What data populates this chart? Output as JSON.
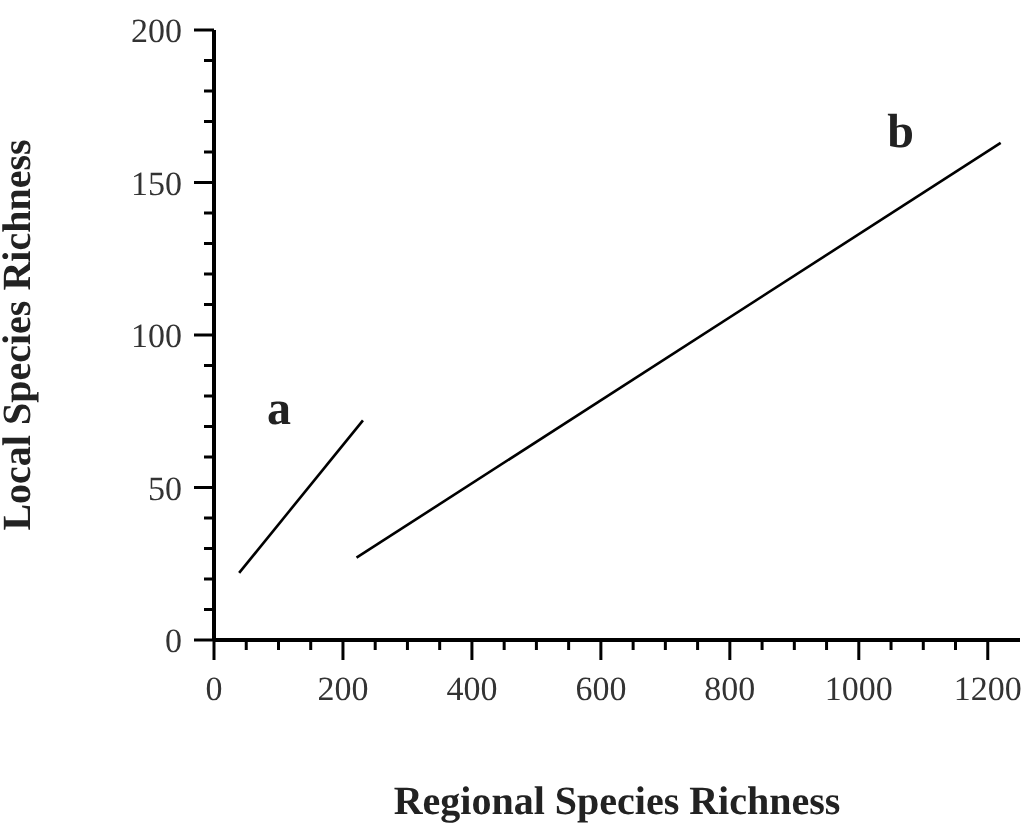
{
  "chart_data": {
    "type": "line",
    "xlabel": "Regional Species Richness",
    "ylabel": "Local Species Richness",
    "xlim": [
      0,
      1250
    ],
    "xticks": [
      0,
      {
        "value": 50,
        "label": null
      },
      {
        "value": 100,
        "label": null
      },
      {
        "value": 150,
        "label": null
      },
      200,
      {
        "value": 250,
        "label": null
      },
      {
        "value": 300,
        "label": null
      },
      {
        "value": 350,
        "label": null
      },
      400,
      {
        "value": 450,
        "label": null
      },
      {
        "value": 500,
        "label": null
      },
      {
        "value": 550,
        "label": null
      },
      600,
      {
        "value": 650,
        "label": null
      },
      {
        "value": 700,
        "label": null
      },
      {
        "value": 750,
        "label": null
      },
      800,
      {
        "value": 850,
        "label": null
      },
      {
        "value": 900,
        "label": null
      },
      {
        "value": 950,
        "label": null
      },
      1000,
      {
        "value": 1050,
        "label": null
      },
      {
        "value": 1100,
        "label": null
      },
      {
        "value": 1150,
        "label": null
      },
      1200
    ],
    "ylim": [
      0,
      200
    ],
    "yticks": [
      0,
      {
        "value": 10,
        "label": null
      },
      {
        "value": 20,
        "label": null
      },
      {
        "value": 30,
        "label": null
      },
      {
        "value": 40,
        "label": null
      },
      50,
      {
        "value": 60,
        "label": null
      },
      {
        "value": 70,
        "label": null
      },
      {
        "value": 80,
        "label": null
      },
      {
        "value": 90,
        "label": null
      },
      100,
      {
        "value": 110,
        "label": null
      },
      {
        "value": 120,
        "label": null
      },
      {
        "value": 130,
        "label": null
      },
      {
        "value": 140,
        "label": null
      },
      150,
      {
        "value": 160,
        "label": null
      },
      {
        "value": 170,
        "label": null
      },
      {
        "value": 180,
        "label": null
      },
      {
        "value": 190,
        "label": null
      },
      200
    ],
    "series": [
      {
        "color": "#000000",
        "x": [
          39,
          231
        ],
        "values": [
          22,
          72
        ]
      },
      {
        "color": "#000000",
        "x": [
          221,
          1220
        ],
        "values": [
          27,
          163
        ]
      }
    ],
    "annotations": [
      "a",
      "b"
    ],
    "grid": false
  }
}
